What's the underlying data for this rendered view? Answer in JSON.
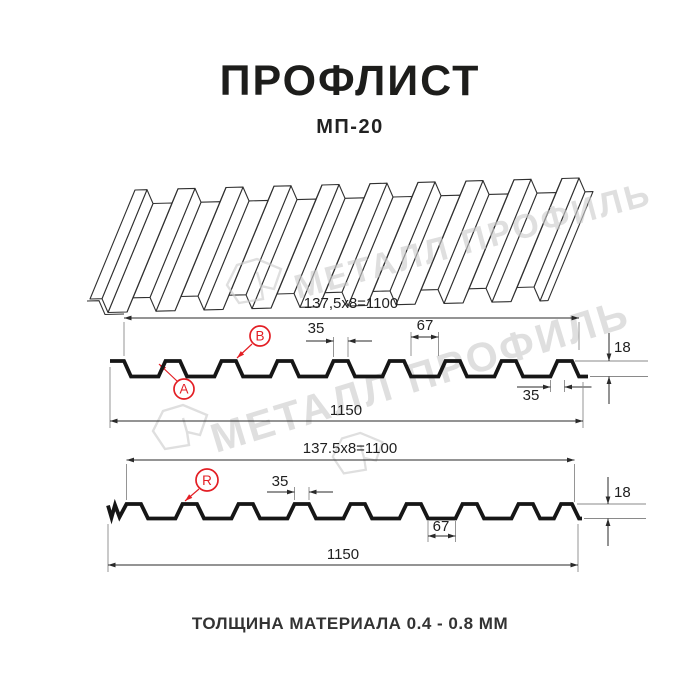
{
  "header": {
    "title": "ПРОФЛИСТ",
    "subtitle": "МП-20"
  },
  "watermark": {
    "text": "МЕТАЛЛ ПРОФИЛЬ"
  },
  "drawing_top": {
    "pitch_dim": "137,5x8=1100",
    "rib_top_width": "35",
    "valley_width": "67",
    "profile_height": "18",
    "rib_bottom_width": "35",
    "total_width": "1150",
    "label_a": "A",
    "label_b": "B"
  },
  "drawing_bottom": {
    "pitch_dim": "137.5x8=1100",
    "rib_top_width": "35",
    "valley_width": "67",
    "profile_height": "18",
    "total_width": "1150",
    "label_r": "R"
  },
  "footer": {
    "text": "ТОЛЩИНА МАТЕРИАЛА 0.4 - 0.8 ММ"
  },
  "colors": {
    "profile_line": "#161616",
    "dimension_line": "#2a2a2a",
    "extension_line": "#8a8a8a",
    "face_stroke": "#303030",
    "accent_red": "#e31e24",
    "watermark": "#cccccc"
  }
}
